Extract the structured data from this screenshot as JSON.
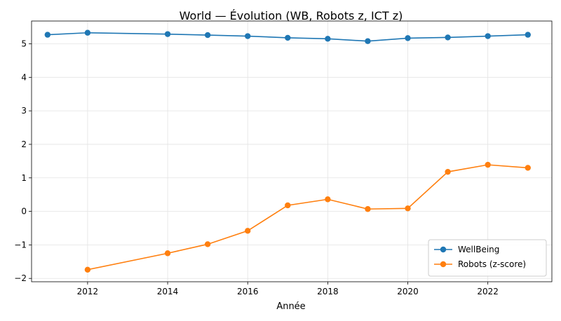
{
  "chart_data": {
    "type": "line",
    "title": "World — Évolution (WB, Robots z, ICT z)",
    "xlabel": "Année",
    "ylabel": "",
    "xlim": [
      2010.6,
      2023.6
    ],
    "ylim": [
      -2.1,
      5.68
    ],
    "xticks": [
      2012,
      2014,
      2016,
      2018,
      2020,
      2022
    ],
    "yticks": [
      -2,
      -1,
      0,
      1,
      2,
      3,
      4,
      5
    ],
    "grid": true,
    "legend_position": "lower-right",
    "series": [
      {
        "name": "WellBeing",
        "color": "#1f77b4",
        "marker": "circle",
        "x": [
          2011,
          2012,
          2014,
          2015,
          2016,
          2017,
          2018,
          2019,
          2020,
          2021,
          2022,
          2023
        ],
        "values": [
          5.27,
          5.33,
          5.29,
          5.26,
          5.23,
          5.18,
          5.15,
          5.08,
          5.17,
          5.19,
          5.23,
          5.27
        ]
      },
      {
        "name": "Robots (z-score)",
        "color": "#ff7f0e",
        "marker": "circle",
        "x": [
          2012,
          2014,
          2015,
          2016,
          2017,
          2018,
          2019,
          2020,
          2021,
          2022,
          2023
        ],
        "values": [
          -1.74,
          -1.25,
          -0.98,
          -0.58,
          0.18,
          0.36,
          0.07,
          0.09,
          1.18,
          1.39,
          1.3
        ]
      }
    ]
  }
}
